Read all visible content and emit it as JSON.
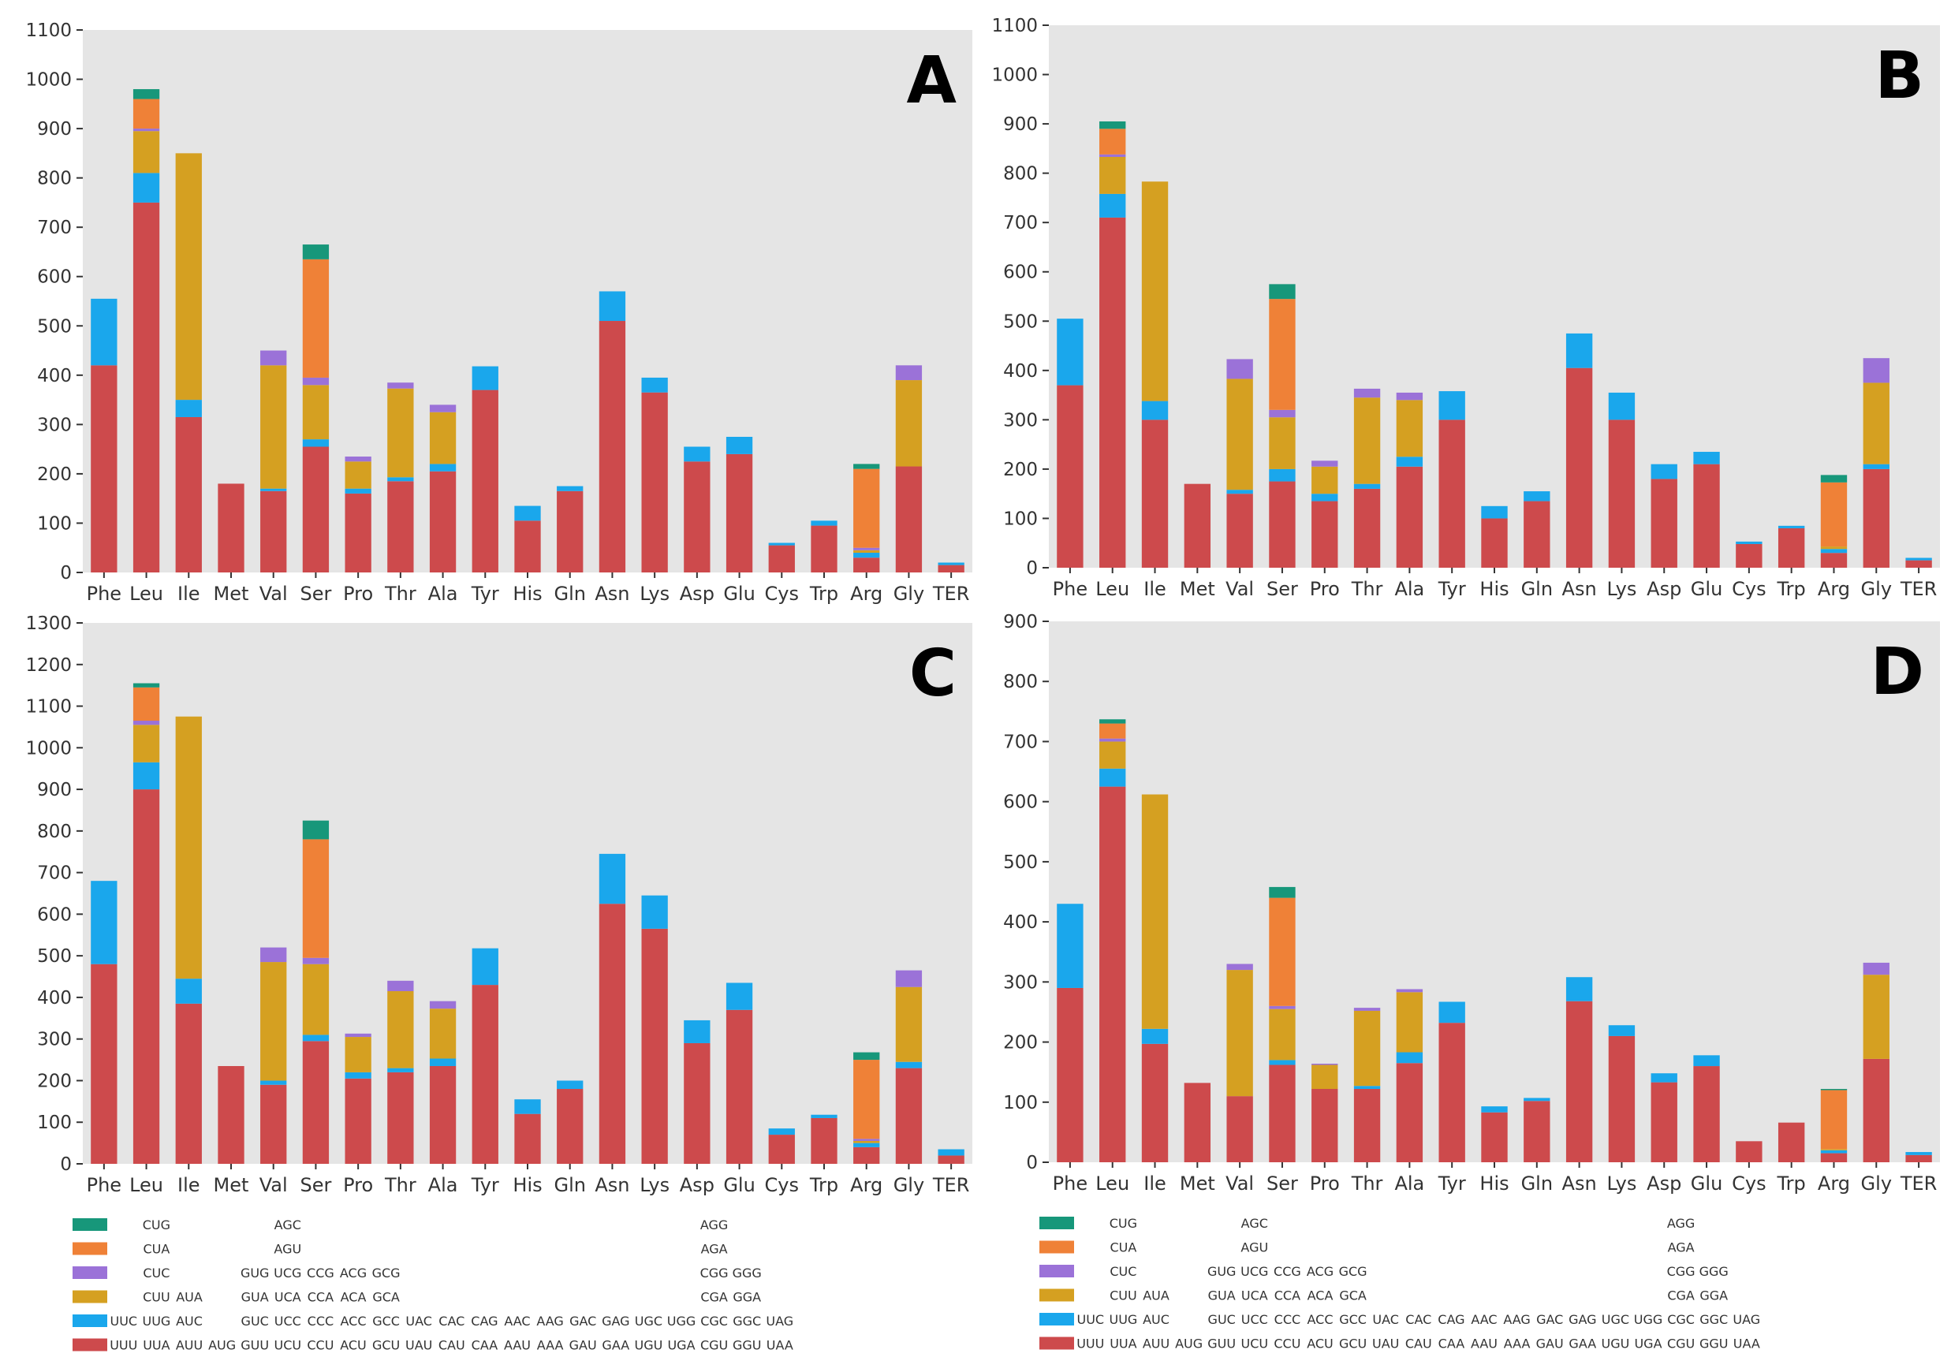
{
  "colors": {
    "plot_bg": "#e5e5e5",
    "tier0": "#cd4a4c",
    "tier1": "#1aa7ec",
    "tier2": "#d5a021",
    "tier3": "#9b72d8",
    "tier4": "#ef8137",
    "tier5": "#17977a"
  },
  "chart_data": [
    {
      "panel": "A",
      "type": "bar",
      "stacked": true,
      "categories": [
        "Phe",
        "Leu",
        "Ile",
        "Met",
        "Val",
        "Ser",
        "Pro",
        "Thr",
        "Ala",
        "Tyr",
        "His",
        "Gln",
        "Asn",
        "Lys",
        "Asp",
        "Glu",
        "Cys",
        "Trp",
        "Arg",
        "Gly",
        "TER"
      ],
      "ylim": [
        0,
        1100
      ],
      "yticks": [
        "0",
        "100",
        "200",
        "300",
        "400",
        "500",
        "600",
        "700",
        "800",
        "900",
        "1000",
        "1100"
      ],
      "series": [
        {
          "name": "tier0",
          "values": [
            420,
            750,
            315,
            180,
            165,
            255,
            160,
            185,
            205,
            370,
            105,
            165,
            510,
            365,
            225,
            240,
            55,
            95,
            30,
            215,
            15
          ]
        },
        {
          "name": "tier1",
          "values": [
            135,
            60,
            35,
            0,
            5,
            15,
            10,
            8,
            15,
            48,
            30,
            10,
            60,
            30,
            30,
            35,
            5,
            10,
            10,
            0,
            5
          ]
        },
        {
          "name": "tier2",
          "values": [
            0,
            85,
            500,
            0,
            250,
            110,
            55,
            180,
            105,
            0,
            0,
            0,
            0,
            0,
            0,
            0,
            0,
            0,
            5,
            175,
            0
          ]
        },
        {
          "name": "tier3",
          "values": [
            0,
            5,
            0,
            0,
            30,
            15,
            10,
            12,
            15,
            0,
            0,
            0,
            0,
            0,
            0,
            0,
            0,
            0,
            5,
            30,
            0
          ]
        },
        {
          "name": "tier4",
          "values": [
            0,
            60,
            0,
            0,
            0,
            240,
            0,
            0,
            0,
            0,
            0,
            0,
            0,
            0,
            0,
            0,
            0,
            0,
            160,
            0,
            0
          ]
        },
        {
          "name": "tier5",
          "values": [
            0,
            20,
            0,
            0,
            0,
            30,
            0,
            0,
            0,
            0,
            0,
            0,
            0,
            0,
            0,
            0,
            0,
            0,
            10,
            0,
            0
          ]
        }
      ]
    },
    {
      "panel": "B",
      "type": "bar",
      "stacked": true,
      "categories": [
        "Phe",
        "Leu",
        "Ile",
        "Met",
        "Val",
        "Ser",
        "Pro",
        "Thr",
        "Ala",
        "Tyr",
        "His",
        "Gln",
        "Asn",
        "Lys",
        "Asp",
        "Glu",
        "Cys",
        "Trp",
        "Arg",
        "Gly",
        "TER"
      ],
      "ylim": [
        0,
        1100
      ],
      "yticks": [
        "0",
        "100",
        "200",
        "300",
        "400",
        "500",
        "600",
        "700",
        "800",
        "900",
        "1000",
        "1100"
      ],
      "series": [
        {
          "name": "tier0",
          "values": [
            370,
            710,
            300,
            170,
            150,
            175,
            135,
            160,
            205,
            300,
            100,
            135,
            405,
            300,
            180,
            210,
            48,
            80,
            30,
            200,
            15
          ]
        },
        {
          "name": "tier1",
          "values": [
            135,
            48,
            38,
            0,
            8,
            25,
            15,
            10,
            20,
            58,
            25,
            20,
            70,
            55,
            30,
            25,
            5,
            5,
            8,
            10,
            5
          ]
        },
        {
          "name": "tier2",
          "values": [
            0,
            75,
            445,
            0,
            225,
            105,
            55,
            175,
            115,
            0,
            0,
            0,
            0,
            0,
            0,
            0,
            0,
            0,
            5,
            165,
            0
          ]
        },
        {
          "name": "tier3",
          "values": [
            0,
            5,
            0,
            0,
            40,
            15,
            12,
            18,
            15,
            0,
            0,
            0,
            0,
            0,
            0,
            0,
            0,
            0,
            0,
            50,
            0
          ]
        },
        {
          "name": "tier4",
          "values": [
            0,
            52,
            0,
            0,
            0,
            225,
            0,
            0,
            0,
            0,
            0,
            0,
            0,
            0,
            0,
            0,
            0,
            0,
            130,
            0,
            0
          ]
        },
        {
          "name": "tier5",
          "values": [
            0,
            15,
            0,
            0,
            0,
            30,
            0,
            0,
            0,
            0,
            0,
            0,
            0,
            0,
            0,
            0,
            0,
            0,
            15,
            0,
            0
          ]
        }
      ]
    },
    {
      "panel": "C",
      "type": "bar",
      "stacked": true,
      "categories": [
        "Phe",
        "Leu",
        "Ile",
        "Met",
        "Val",
        "Ser",
        "Pro",
        "Thr",
        "Ala",
        "Tyr",
        "His",
        "Gln",
        "Asn",
        "Lys",
        "Asp",
        "Glu",
        "Cys",
        "Trp",
        "Arg",
        "Gly",
        "TER"
      ],
      "ylim": [
        0,
        1300
      ],
      "yticks": [
        "0",
        "100",
        "200",
        "300",
        "400",
        "500",
        "600",
        "700",
        "800",
        "900",
        "1000",
        "1100",
        "1200",
        "1300"
      ],
      "series": [
        {
          "name": "tier0",
          "values": [
            480,
            900,
            385,
            235,
            190,
            295,
            205,
            220,
            235,
            430,
            120,
            180,
            625,
            565,
            290,
            370,
            70,
            110,
            40,
            230,
            20
          ]
        },
        {
          "name": "tier1",
          "values": [
            200,
            65,
            60,
            0,
            10,
            15,
            15,
            10,
            18,
            88,
            35,
            20,
            120,
            80,
            55,
            65,
            15,
            8,
            10,
            15,
            15
          ]
        },
        {
          "name": "tier2",
          "values": [
            0,
            90,
            630,
            0,
            285,
            170,
            85,
            185,
            120,
            0,
            0,
            0,
            0,
            0,
            0,
            0,
            0,
            0,
            5,
            180,
            0
          ]
        },
        {
          "name": "tier3",
          "values": [
            0,
            10,
            0,
            0,
            35,
            15,
            8,
            25,
            18,
            0,
            0,
            0,
            0,
            0,
            0,
            0,
            0,
            0,
            5,
            40,
            0
          ]
        },
        {
          "name": "tier4",
          "values": [
            0,
            80,
            0,
            0,
            0,
            285,
            0,
            0,
            0,
            0,
            0,
            0,
            0,
            0,
            0,
            0,
            0,
            0,
            190,
            0,
            0
          ]
        },
        {
          "name": "tier5",
          "values": [
            0,
            10,
            0,
            0,
            0,
            45,
            0,
            0,
            0,
            0,
            0,
            0,
            0,
            0,
            0,
            0,
            0,
            0,
            18,
            0,
            0
          ]
        }
      ]
    },
    {
      "panel": "D",
      "type": "bar",
      "stacked": true,
      "categories": [
        "Phe",
        "Leu",
        "Ile",
        "Met",
        "Val",
        "Ser",
        "Pro",
        "Thr",
        "Ala",
        "Tyr",
        "His",
        "Gln",
        "Asn",
        "Lys",
        "Asp",
        "Glu",
        "Cys",
        "Trp",
        "Arg",
        "Gly",
        "TER"
      ],
      "ylim": [
        0,
        900
      ],
      "yticks": [
        "0",
        "100",
        "200",
        "300",
        "400",
        "500",
        "600",
        "700",
        "800",
        "900"
      ],
      "series": [
        {
          "name": "tier0",
          "values": [
            290,
            625,
            197,
            132,
            110,
            162,
            122,
            122,
            165,
            232,
            83,
            102,
            268,
            210,
            133,
            160,
            35,
            66,
            15,
            172,
            12
          ]
        },
        {
          "name": "tier1",
          "values": [
            140,
            30,
            25,
            0,
            0,
            8,
            0,
            5,
            18,
            35,
            10,
            5,
            40,
            18,
            15,
            18,
            0,
            0,
            5,
            0,
            5
          ]
        },
        {
          "name": "tier2",
          "values": [
            0,
            45,
            390,
            0,
            210,
            85,
            40,
            125,
            100,
            0,
            0,
            0,
            0,
            0,
            0,
            0,
            0,
            0,
            2,
            140,
            0
          ]
        },
        {
          "name": "tier3",
          "values": [
            0,
            5,
            0,
            0,
            10,
            5,
            2,
            5,
            5,
            0,
            0,
            0,
            0,
            0,
            0,
            0,
            0,
            0,
            0,
            20,
            0
          ]
        },
        {
          "name": "tier4",
          "values": [
            0,
            25,
            0,
            0,
            0,
            180,
            0,
            0,
            0,
            0,
            0,
            0,
            0,
            0,
            0,
            0,
            0,
            0,
            98,
            0,
            0
          ]
        },
        {
          "name": "tier5",
          "values": [
            0,
            7,
            0,
            0,
            0,
            18,
            0,
            0,
            0,
            0,
            0,
            0,
            0,
            0,
            0,
            0,
            0,
            0,
            2,
            0,
            0
          ]
        }
      ]
    }
  ],
  "legend": {
    "rows": [
      {
        "series": "tier5",
        "codons": [
          "",
          "CUG",
          "",
          "",
          "",
          "AGC",
          "",
          "",
          "",
          "",
          "",
          "",
          "",
          "",
          "",
          "",
          "",
          "",
          "AGG",
          "",
          ""
        ]
      },
      {
        "series": "tier4",
        "codons": [
          "",
          "CUA",
          "",
          "",
          "",
          "AGU",
          "",
          "",
          "",
          "",
          "",
          "",
          "",
          "",
          "",
          "",
          "",
          "",
          "AGA",
          "",
          ""
        ]
      },
      {
        "series": "tier3",
        "codons": [
          "",
          "CUC",
          "",
          "",
          "GUG",
          "UCG",
          "CCG",
          "ACG",
          "GCG",
          "",
          "",
          "",
          "",
          "",
          "",
          "",
          "",
          "",
          "CGG",
          "GGG",
          ""
        ]
      },
      {
        "series": "tier2",
        "codons": [
          "",
          "CUU",
          "AUA",
          "",
          "GUA",
          "UCA",
          "CCA",
          "ACA",
          "GCA",
          "",
          "",
          "",
          "",
          "",
          "",
          "",
          "",
          "",
          "CGA",
          "GGA",
          ""
        ]
      },
      {
        "series": "tier1",
        "codons": [
          "UUC",
          "UUG",
          "AUC",
          "",
          "GUC",
          "UCC",
          "CCC",
          "ACC",
          "GCC",
          "UAC",
          "CAC",
          "CAG",
          "AAC",
          "AAG",
          "GAC",
          "GAG",
          "UGC",
          "UGG",
          "CGC",
          "GGC",
          "UAG"
        ]
      },
      {
        "series": "tier0",
        "codons": [
          "UUU",
          "UUA",
          "AUU",
          "AUG",
          "GUU",
          "UCU",
          "CCU",
          "ACU",
          "GCU",
          "UAU",
          "CAU",
          "CAA",
          "AAU",
          "AAA",
          "GAU",
          "GAA",
          "UGU",
          "UGA",
          "CGU",
          "GGU",
          "UAA"
        ]
      }
    ]
  }
}
